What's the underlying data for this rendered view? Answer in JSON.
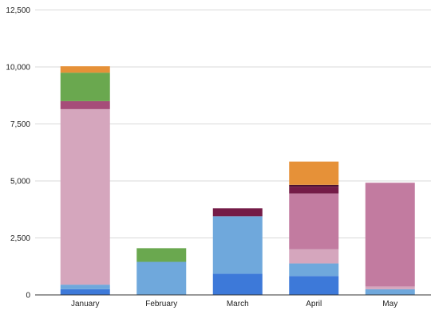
{
  "chart_data": {
    "type": "bar",
    "stacked": true,
    "title": "",
    "xlabel": "",
    "ylabel": "",
    "categories": [
      "January",
      "February",
      "March",
      "April",
      "May"
    ],
    "ylim": [
      0,
      12500
    ],
    "yticks": [
      0,
      2500,
      5000,
      7500,
      10000,
      12500
    ],
    "ytick_labels": [
      "0",
      "2,500",
      "5,000",
      "7,500",
      "10,000",
      "12,500"
    ],
    "grid": true,
    "legend": "none",
    "series": [
      {
        "color": "#3d79d9",
        "values": [
          250,
          0,
          930,
          830,
          0
        ]
      },
      {
        "color": "#6fa8dc",
        "values": [
          200,
          1450,
          2520,
          550,
          250
        ]
      },
      {
        "color": "#d5a6bd",
        "values": [
          7700,
          0,
          0,
          620,
          120
        ]
      },
      {
        "color": "#c27ba0",
        "values": [
          0,
          0,
          0,
          2450,
          4550
        ]
      },
      {
        "color": "#a64d79",
        "values": [
          350,
          0,
          0,
          0,
          0
        ]
      },
      {
        "color": "#741b47",
        "values": [
          0,
          0,
          350,
          300,
          0
        ]
      },
      {
        "color": "#4c1130",
        "values": [
          0,
          0,
          0,
          80,
          0
        ]
      },
      {
        "color": "#6aa84f",
        "values": [
          1250,
          600,
          0,
          0,
          0
        ]
      },
      {
        "color": "#e69138",
        "values": [
          280,
          0,
          0,
          1020,
          0
        ]
      }
    ]
  }
}
